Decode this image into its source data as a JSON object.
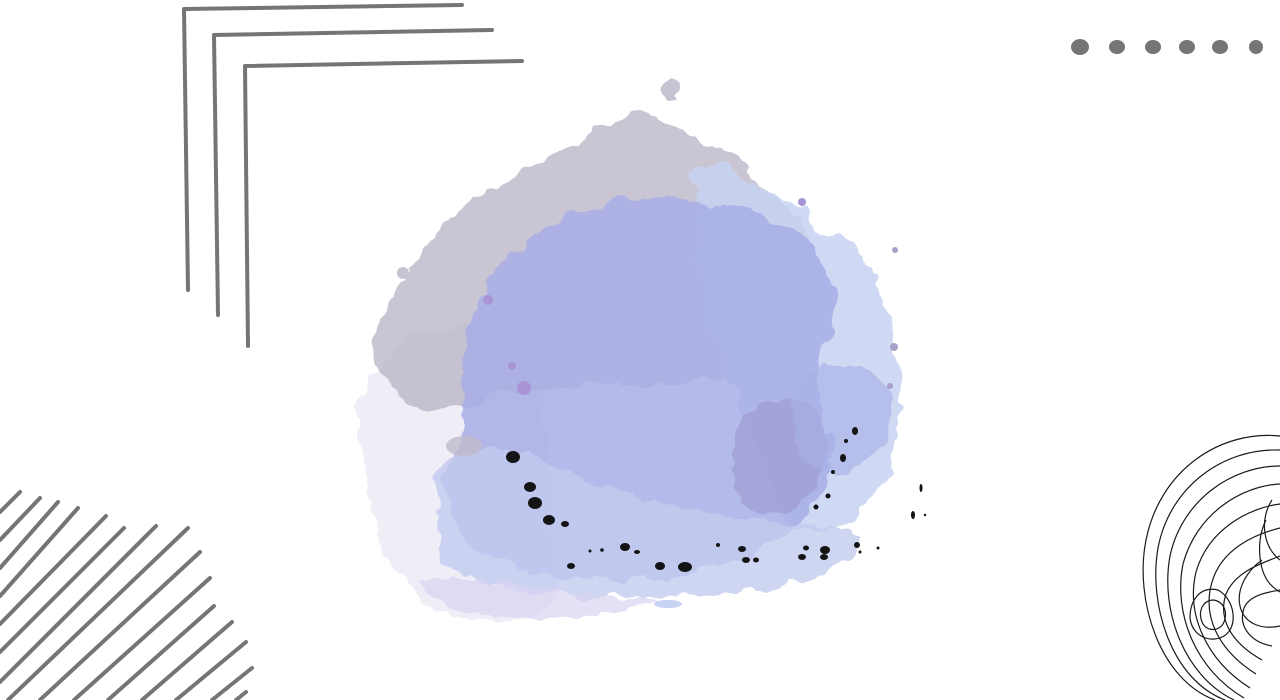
{
  "canvas": {
    "background_color": "#ffffff"
  },
  "colors": {
    "line_gray": "#757575",
    "contour_black": "#1a1a1a",
    "paint_lavender": "#a8aee6",
    "paint_mauve": "#b9b2c4",
    "paint_periwinkle": "#9fa6e2",
    "paint_light_blue": "#c7d3f2",
    "paint_purple": "#a994d6",
    "ink_black": "#141414"
  },
  "elements": {
    "corner_lines": {
      "icon": "nested-corner-brackets",
      "count": 3
    },
    "dot_row": {
      "icon": "dot-row",
      "count": 6
    },
    "diagonal_hatching": {
      "icon": "diagonal-stripes"
    },
    "contour_rings": {
      "icon": "topographic-contour-rings"
    },
    "watercolor_blob": {
      "icon": "watercolor-splash"
    },
    "ink_splatter": {
      "icon": "ink-dots"
    }
  }
}
